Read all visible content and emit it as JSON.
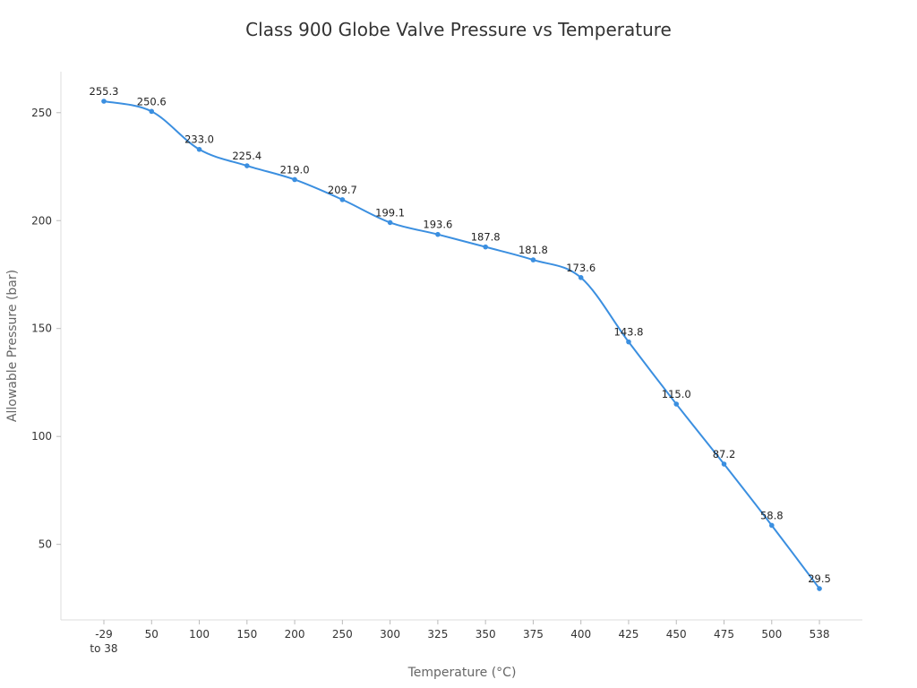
{
  "chart_data": {
    "type": "line",
    "title": "Class 900 Globe Valve Pressure vs Temperature",
    "xlabel": "Temperature (°C)",
    "ylabel": "Allowable Pressure (bar)",
    "categories": [
      "-29\nto 38",
      "50",
      "100",
      "150",
      "200",
      "250",
      "300",
      "325",
      "350",
      "375",
      "400",
      "425",
      "450",
      "475",
      "500",
      "538"
    ],
    "values": [
      255.3,
      250.6,
      233.0,
      225.4,
      219.0,
      209.7,
      199.1,
      193.6,
      187.8,
      181.8,
      173.6,
      143.8,
      115.0,
      87.2,
      58.8,
      29.5
    ],
    "data_labels": [
      "255.3",
      "250.6",
      "233.0",
      "225.4",
      "219.0",
      "209.7",
      "199.1",
      "193.6",
      "187.8",
      "181.8",
      "173.6",
      "143.8",
      "115.0",
      "87.2",
      "58.8",
      "29.5"
    ],
    "yticks": [
      50,
      100,
      150,
      200,
      250
    ],
    "ylim": [
      15,
      269
    ],
    "grid": false,
    "legend": "none",
    "line_color": "#3b8fe0",
    "smooth": true
  }
}
